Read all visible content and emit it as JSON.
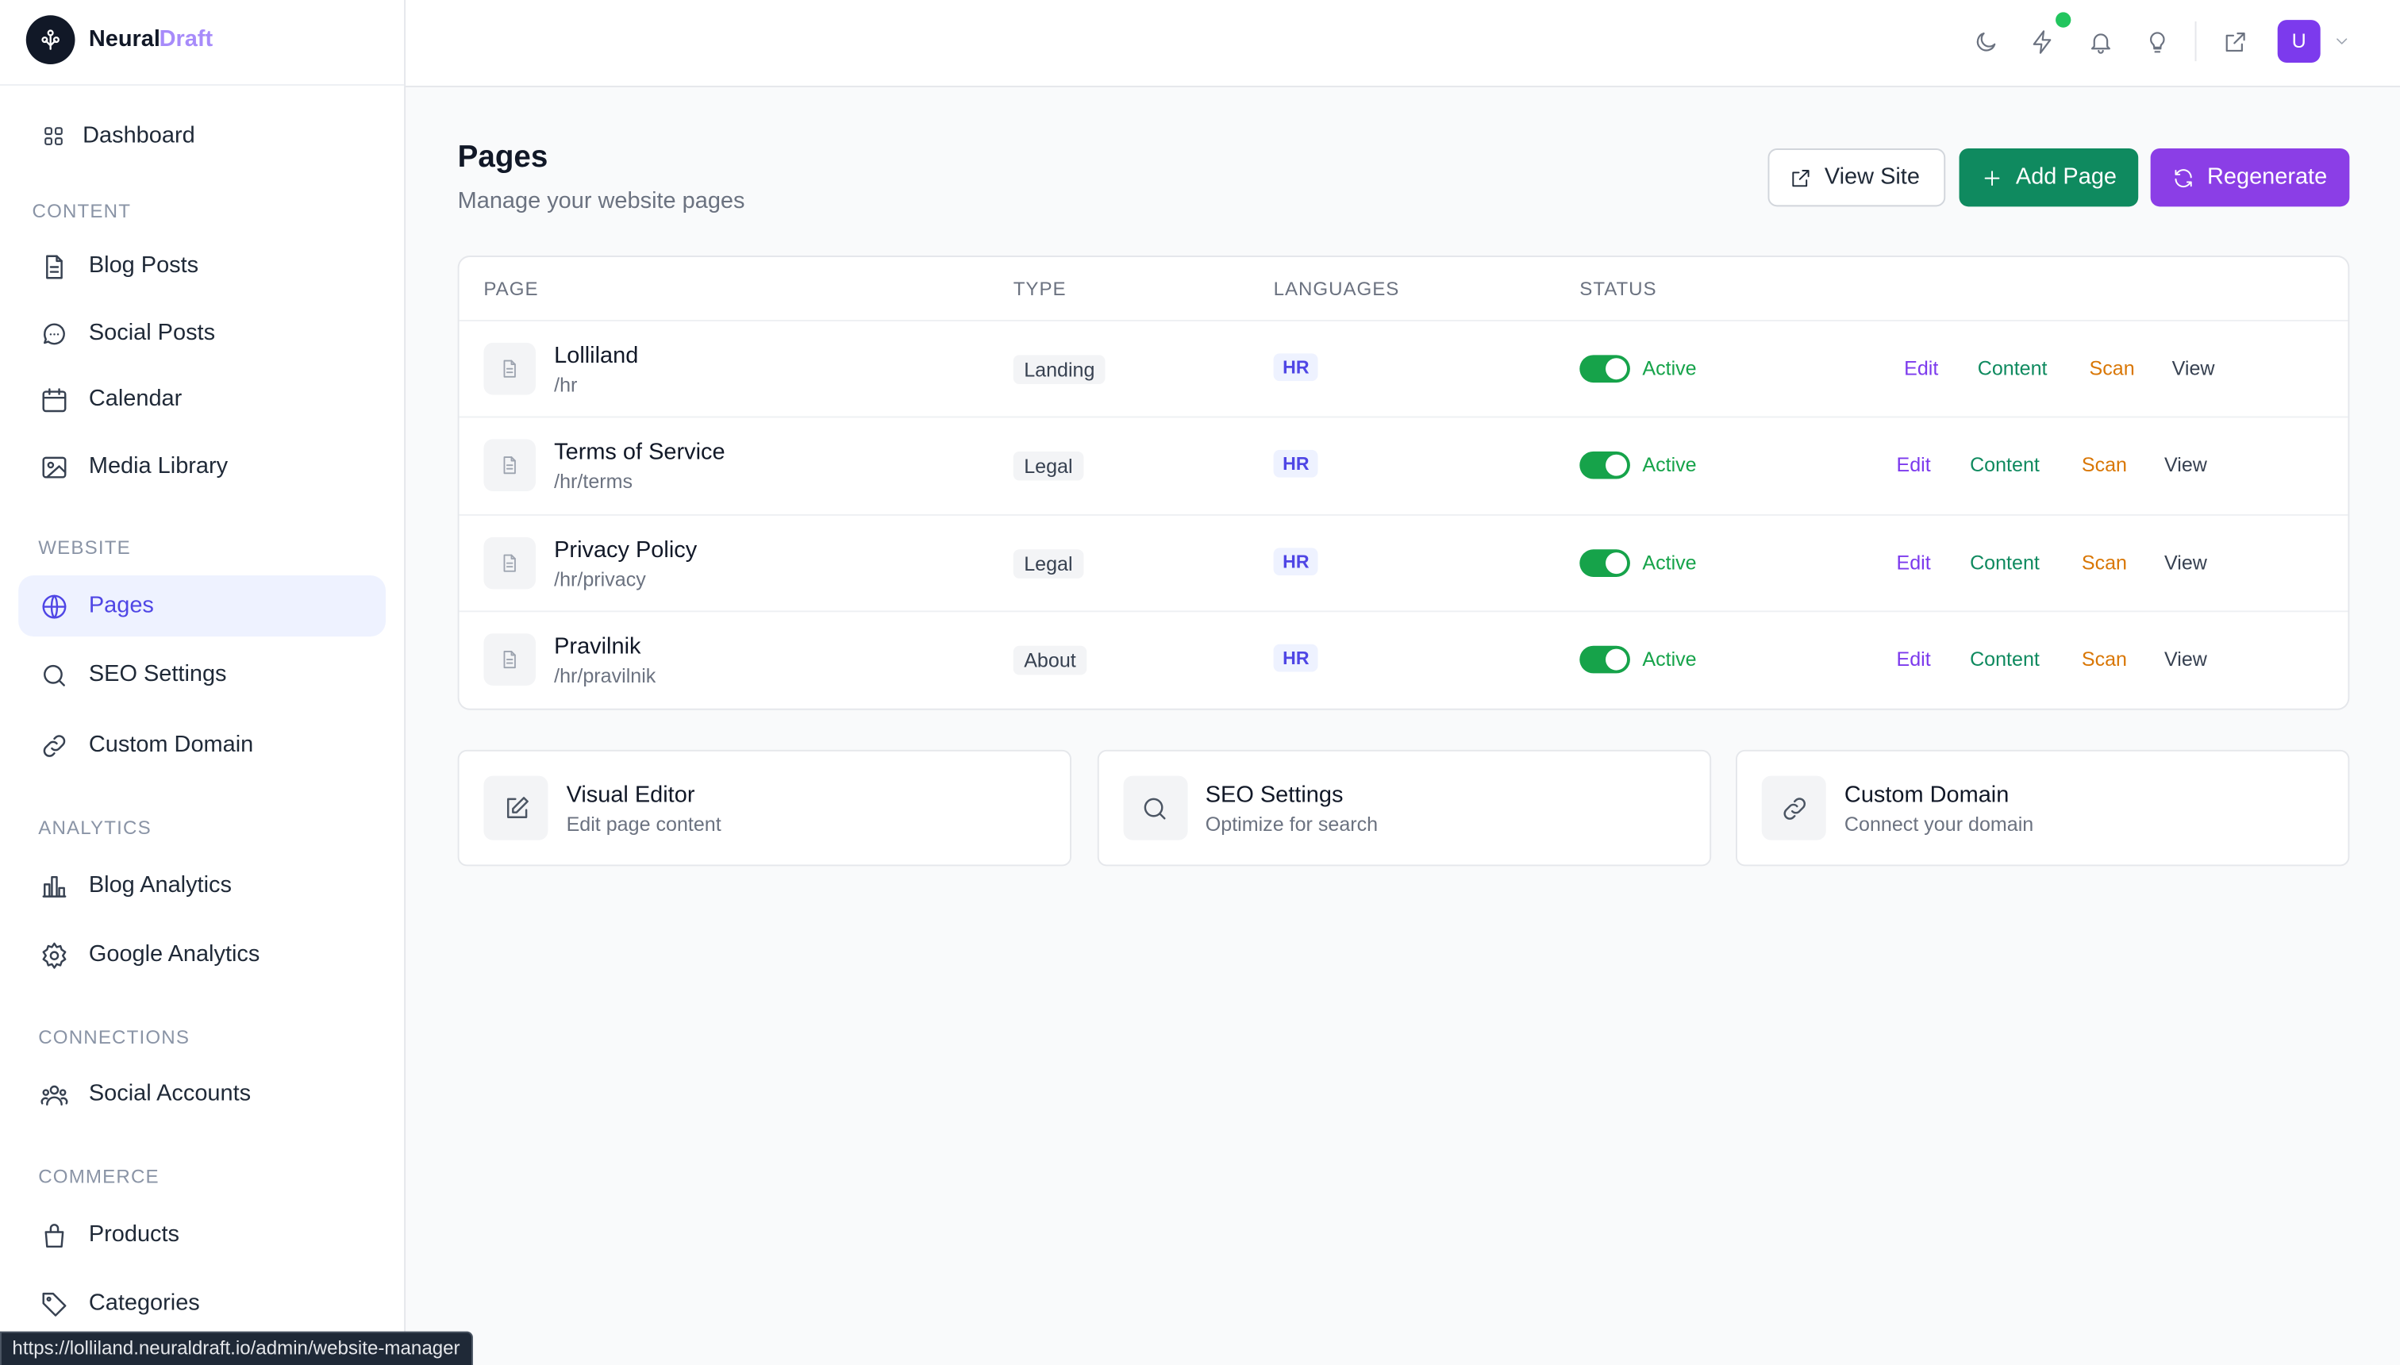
{
  "brand": {
    "name_main": "Neural",
    "name_accent": "Draft"
  },
  "sidebar": {
    "sections": [
      {
        "items": [
          "Dashboard"
        ]
      },
      {
        "label": "CONTENT",
        "items": [
          "Blog Posts",
          "Social Posts",
          "Calendar",
          "Media Library"
        ]
      },
      {
        "label": "WEBSITE",
        "items": [
          "Pages",
          "SEO Settings",
          "Custom Domain"
        ]
      },
      {
        "label": "ANALYTICS",
        "items": [
          "Blog Analytics",
          "Google Analytics"
        ]
      },
      {
        "label": "CONNECTIONS",
        "items": [
          "Social Accounts"
        ]
      },
      {
        "label": "COMMERCE",
        "items": [
          "Products",
          "Categories"
        ]
      }
    ]
  },
  "header": {
    "avatar": "U"
  },
  "page": {
    "title": "Pages",
    "subtitle": "Manage your website pages",
    "buttons": [
      "View Site",
      "Add Page",
      "Regenerate"
    ]
  },
  "table": {
    "columns": [
      "PAGE",
      "TYPE",
      "LANGUAGES",
      "STATUS"
    ],
    "rows": [
      {
        "name": "Lolliland",
        "path": "/hr",
        "type": "Landing",
        "language": "HR",
        "status": "Active",
        "actions": [
          "Edit",
          "Content",
          "Scan",
          "View"
        ]
      },
      {
        "name": "Terms of Service",
        "path": "/hr/terms",
        "type": "Legal",
        "language": "HR",
        "status": "Active",
        "actions": [
          "Edit",
          "Content",
          "Scan",
          "View"
        ]
      },
      {
        "name": "Privacy Policy",
        "path": "/hr/privacy",
        "type": "Legal",
        "language": "HR",
        "status": "Active",
        "actions": [
          "Edit",
          "Content",
          "Scan",
          "View"
        ]
      },
      {
        "name": "Pravilnik",
        "path": "/hr/pravilnik",
        "type": "About",
        "language": "HR",
        "status": "Active",
        "actions": [
          "Edit",
          "Content",
          "Scan",
          "View"
        ]
      }
    ]
  },
  "cards": [
    {
      "title": "Visual Editor",
      "subtitle": "Edit page content"
    },
    {
      "title": "SEO Settings",
      "subtitle": "Optimize for search"
    },
    {
      "title": "Custom Domain",
      "subtitle": "Connect your domain"
    }
  ],
  "status_bar": "https://lolliland.neuraldraft.io/admin/website-manager"
}
